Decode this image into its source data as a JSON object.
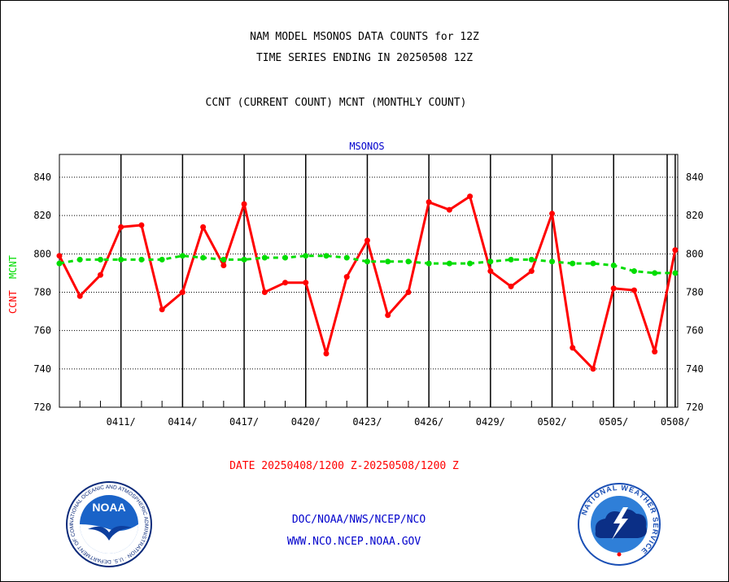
{
  "header": {
    "title_line1": "NAM MODEL MSONOS DATA COUNTS for 12Z",
    "title_line2": "TIME SERIES ENDING IN 20250508 12Z",
    "title_line3": "CCNT (CURRENT COUNT) MCNT (MONTHLY COUNT)"
  },
  "footer": {
    "date_range": "DATE 20250408/1200 Z-20250508/1200 Z",
    "org": "DOC/NOAA/NWS/NCEP/NCO",
    "url": "WWW.NCO.NCEP.NOAA.GOV"
  },
  "logos": {
    "left": {
      "name": "noaa-seal",
      "text": "NOAA",
      "ring_text": "NATIONAL OCEANIC AND ATMOSPHERIC ADMINISTRATION · U.S. DEPARTMENT OF COMMERCE"
    },
    "right": {
      "name": "nws-seal",
      "ring_text": "NATIONAL WEATHER SERVICE"
    }
  },
  "colors": {
    "ccnt": "#ff0000",
    "mcnt": "#00dd00",
    "plot_title": "#0000cc",
    "grid": "#000000"
  },
  "chart_data": {
    "type": "line",
    "title": "MSONOS",
    "ylabel_parts": [
      {
        "text": "CCNT",
        "color": "#ff0000"
      },
      {
        "text": "MCNT",
        "color": "#00dd00"
      }
    ],
    "ylim": [
      720,
      850
    ],
    "yticks": [
      720,
      740,
      760,
      780,
      800,
      820,
      840
    ],
    "x_tick_labels": [
      "0411/",
      "0414/",
      "0417/",
      "0420/",
      "0423/",
      "0426/",
      "0429/",
      "0502/",
      "0505/",
      "0508/"
    ],
    "x_dates": [
      "0408",
      "0409",
      "0410",
      "0411",
      "0412",
      "0413",
      "0414",
      "0415",
      "0416",
      "0417",
      "0418",
      "0419",
      "0420",
      "0421",
      "0422",
      "0423",
      "0424",
      "0425",
      "0426",
      "0427",
      "0428",
      "0429",
      "0430",
      "0501",
      "0502",
      "0503",
      "0504",
      "0505",
      "0506",
      "0507",
      "0508"
    ],
    "grid": true,
    "series": [
      {
        "name": "CCNT",
        "color": "#ff0000",
        "style": "solid",
        "values": [
          799,
          778,
          789,
          814,
          815,
          771,
          780,
          814,
          794,
          826,
          780,
          785,
          785,
          748,
          788,
          807,
          768,
          780,
          827,
          823,
          830,
          791,
          783,
          791,
          821,
          751,
          740,
          782,
          781,
          749,
          802
        ]
      },
      {
        "name": "MCNT",
        "color": "#00dd00",
        "style": "dashed",
        "values": [
          795,
          797,
          797,
          797,
          797,
          797,
          799,
          798,
          797,
          797,
          798,
          798,
          799,
          799,
          798,
          796,
          796,
          796,
          795,
          795,
          795,
          796,
          797,
          797,
          796,
          795,
          795,
          794,
          791,
          790,
          790
        ]
      }
    ]
  }
}
